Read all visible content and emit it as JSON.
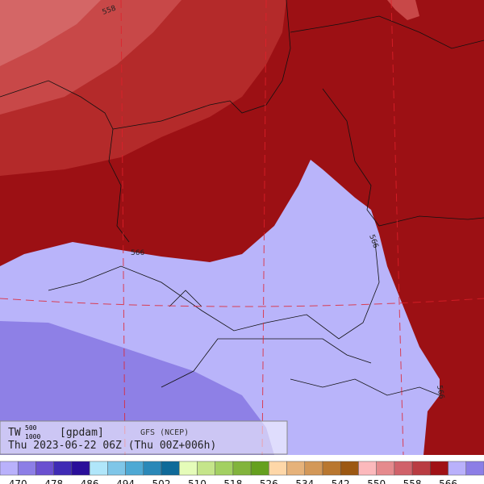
{
  "header": {
    "variable": "TW",
    "upper_level": "500",
    "lower_level": "1000",
    "units": "[gpdam]",
    "model": "GFS (NCEP)",
    "valid": "Thu 2023-06-22 06Z (Thu 00Z+006h)"
  },
  "contour_labels": [
    "558",
    "566",
    "566",
    "566"
  ],
  "colorbar": {
    "colors": [
      "#b9b1fb",
      "#8c7ee6",
      "#6a50d0",
      "#3f2bb5",
      "#2a0f9a",
      "#b0e6fa",
      "#7fc6e8",
      "#4ea9d4",
      "#2a88b8",
      "#0f6a99",
      "#e5fcb9",
      "#c5e58a",
      "#a3d062",
      "#82b43c",
      "#65a01f",
      "#fed7a8",
      "#e6b27a",
      "#d39858",
      "#b9772f",
      "#9c5812",
      "#fcb9bc",
      "#e58a8d",
      "#d0626a",
      "#b93c42",
      "#a01216",
      "#b9b1fb",
      "#8c7ee6"
    ],
    "labels": [
      470,
      478,
      486,
      494,
      502,
      510,
      518,
      526,
      534,
      542,
      550,
      558,
      566
    ]
  }
}
